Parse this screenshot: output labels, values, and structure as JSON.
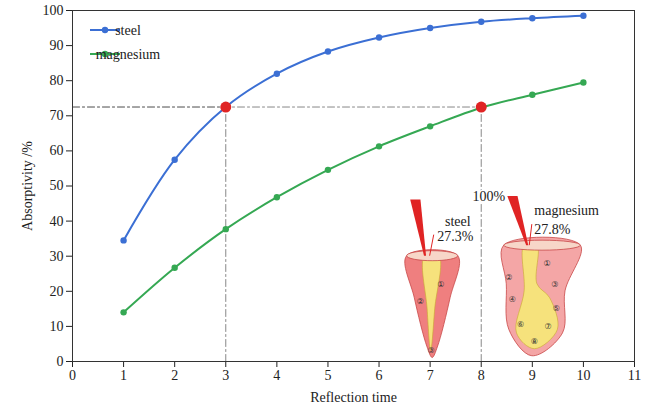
{
  "chart_data": {
    "type": "line",
    "x": [
      1,
      2,
      3,
      4,
      5,
      6,
      7,
      8,
      9,
      10
    ],
    "series": [
      {
        "name": "steel",
        "color": "#3b6fd4",
        "marker": "circle",
        "values": [
          34.5,
          57.5,
          72.5,
          82,
          88.3,
          92.3,
          95,
          96.8,
          97.8,
          98.5
        ]
      },
      {
        "name": "magnesium",
        "color": "#35a853",
        "marker": "circle",
        "values": [
          14,
          26.7,
          37.7,
          46.8,
          54.6,
          61.3,
          67,
          72.3,
          76,
          79.5
        ]
      }
    ],
    "xlabel": "Reflection time",
    "ylabel": "Absorptivity /%",
    "xlim": [
      0,
      11
    ],
    "xticks": [
      0,
      1,
      2,
      3,
      4,
      5,
      6,
      7,
      8,
      9,
      10,
      11
    ],
    "ylim": [
      0,
      100
    ],
    "yticks": [
      0,
      10,
      20,
      30,
      40,
      50,
      60,
      70,
      80,
      90,
      100
    ],
    "legend": "upper left",
    "reference_points": {
      "x": [
        3,
        8
      ],
      "y": [
        72.5,
        72.5
      ]
    },
    "annotations": [
      {
        "series": "steel",
        "label": "steel",
        "reflected": "27.3%",
        "steps": [
          "①",
          "②",
          "③"
        ]
      },
      {
        "series": "magnesium",
        "incident": "100%",
        "label": "magnesium",
        "reflected": "27.8%",
        "steps": [
          "①",
          "②",
          "③",
          "④",
          "⑤",
          "⑥",
          "⑦",
          "⑧"
        ]
      }
    ]
  }
}
